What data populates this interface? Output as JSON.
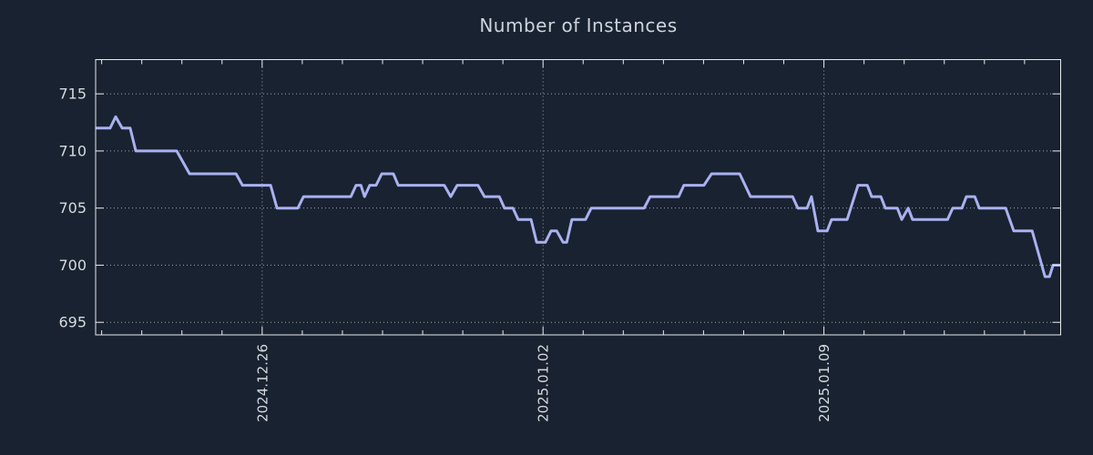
{
  "chart": {
    "title": "Number of Instances"
  },
  "chart_data": {
    "type": "line",
    "title": "Number of Instances",
    "xlabel": "",
    "ylabel": "",
    "grid": "dotted",
    "legend": "none",
    "x_axis": {
      "tick_labels": [
        "2024.12.26",
        "2025.01.02",
        "2025.01.09"
      ],
      "major_tick_days": [
        4.15,
        11.15,
        18.15
      ],
      "minor_ticks": {
        "start_day": 0.15,
        "step_days": 1,
        "count": 24
      },
      "total_days": 24.05
    },
    "y_axis": {
      "ticks": [
        695,
        700,
        705,
        710,
        715
      ],
      "min": 693.9,
      "max": 718.0
    },
    "series": [
      {
        "name": "instances",
        "points": [
          [
            0.0,
            712
          ],
          [
            0.36,
            712
          ],
          [
            0.5,
            713
          ],
          [
            0.66,
            712
          ],
          [
            0.86,
            712
          ],
          [
            1.0,
            710
          ],
          [
            2.02,
            710
          ],
          [
            2.34,
            708
          ],
          [
            3.5,
            708
          ],
          [
            3.66,
            707
          ],
          [
            4.36,
            707
          ],
          [
            4.52,
            705
          ],
          [
            5.04,
            705
          ],
          [
            5.18,
            706
          ],
          [
            6.36,
            706
          ],
          [
            6.49,
            707
          ],
          [
            6.61,
            707
          ],
          [
            6.7,
            706
          ],
          [
            6.83,
            707
          ],
          [
            6.99,
            707
          ],
          [
            7.13,
            708
          ],
          [
            7.42,
            708
          ],
          [
            7.54,
            707
          ],
          [
            8.69,
            707
          ],
          [
            8.85,
            706
          ],
          [
            9.01,
            707
          ],
          [
            9.53,
            707
          ],
          [
            9.69,
            706
          ],
          [
            10.06,
            706
          ],
          [
            10.19,
            705
          ],
          [
            10.4,
            705
          ],
          [
            10.53,
            704
          ],
          [
            10.85,
            704
          ],
          [
            10.99,
            702
          ],
          [
            11.21,
            702
          ],
          [
            11.35,
            703
          ],
          [
            11.49,
            703
          ],
          [
            11.65,
            702
          ],
          [
            11.74,
            702
          ],
          [
            11.87,
            704
          ],
          [
            12.21,
            704
          ],
          [
            12.35,
            705
          ],
          [
            13.67,
            705
          ],
          [
            13.82,
            706
          ],
          [
            14.53,
            706
          ],
          [
            14.66,
            707
          ],
          [
            15.16,
            707
          ],
          [
            15.35,
            708
          ],
          [
            16.05,
            708
          ],
          [
            16.32,
            706
          ],
          [
            17.37,
            706
          ],
          [
            17.5,
            705
          ],
          [
            17.73,
            705
          ],
          [
            17.84,
            706
          ],
          [
            18.0,
            703
          ],
          [
            18.23,
            703
          ],
          [
            18.34,
            704
          ],
          [
            18.73,
            704
          ],
          [
            19.0,
            707
          ],
          [
            19.23,
            707
          ],
          [
            19.34,
            706
          ],
          [
            19.57,
            706
          ],
          [
            19.68,
            705
          ],
          [
            19.98,
            705
          ],
          [
            20.09,
            704
          ],
          [
            20.25,
            705
          ],
          [
            20.36,
            704
          ],
          [
            21.23,
            704
          ],
          [
            21.36,
            705
          ],
          [
            21.59,
            705
          ],
          [
            21.7,
            706
          ],
          [
            21.91,
            706
          ],
          [
            22.02,
            705
          ],
          [
            22.68,
            705
          ],
          [
            22.88,
            703
          ],
          [
            23.34,
            703
          ],
          [
            23.66,
            699
          ],
          [
            23.77,
            699
          ],
          [
            23.86,
            700
          ],
          [
            24.05,
            700
          ]
        ]
      }
    ],
    "colors": {
      "background": "#192230",
      "line": "#a9b1f0",
      "grid": "#c9ced8",
      "border": "#e8eaee",
      "tick_text": "#d6dae0",
      "title_text": "#cdd3db"
    }
  }
}
